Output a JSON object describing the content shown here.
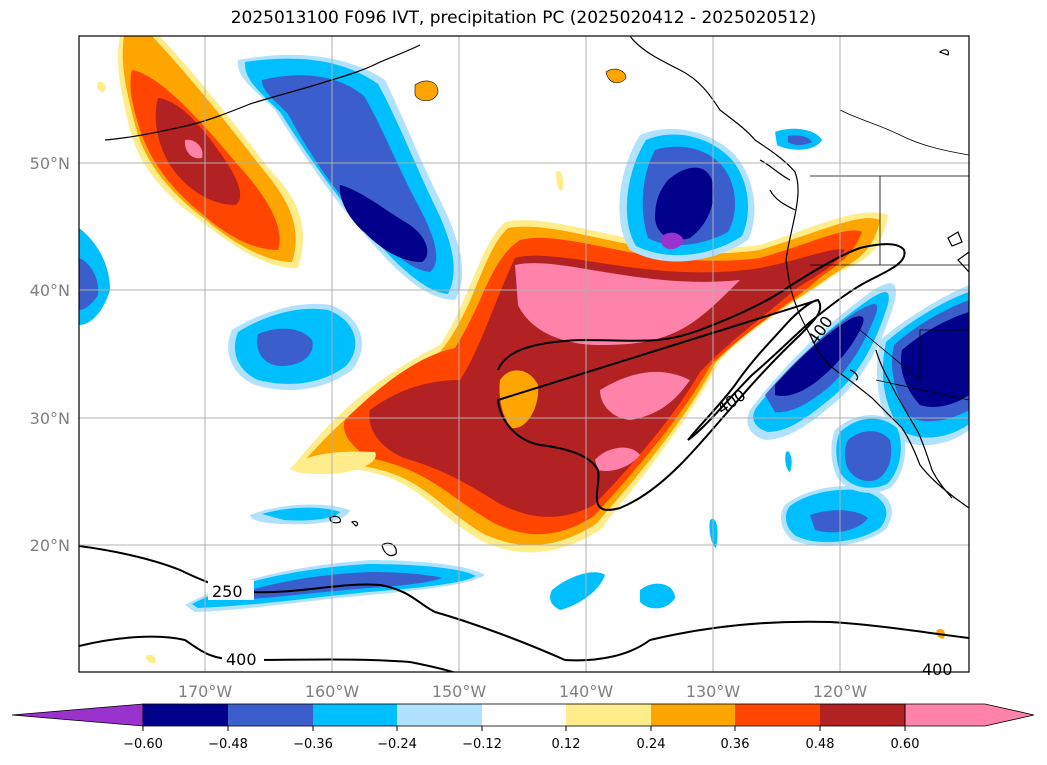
{
  "title": "2025013100 F096 IVT, precipitation PC (2025020412 - 2025020512)",
  "map": {
    "lon_ticks": [
      "170°W",
      "160°W",
      "150°W",
      "140°W",
      "130°W",
      "120°W"
    ],
    "lat_ticks": [
      "50°N",
      "40°N",
      "30°N",
      "20°N"
    ],
    "ivt_contour_labels": [
      "250",
      "400",
      "400",
      "400",
      "400"
    ]
  },
  "colorbar": {
    "ticks": [
      "−0.60",
      "−0.48",
      "−0.36",
      "−0.24",
      "−0.12",
      "0.12",
      "0.24",
      "0.36",
      "0.48",
      "0.60"
    ],
    "colors": [
      "#9a32cd",
      "#00008b",
      "#3a5fcd",
      "#00bfff",
      "#b0e2ff",
      "#ffffff",
      "#ffec8b",
      "#ffa500",
      "#ff4500",
      "#b22222",
      "#ff82ab"
    ]
  },
  "colors": {
    "land_coast": "#000000",
    "grid": "#b0b0b0",
    "ivt_contour": "#000000"
  }
}
